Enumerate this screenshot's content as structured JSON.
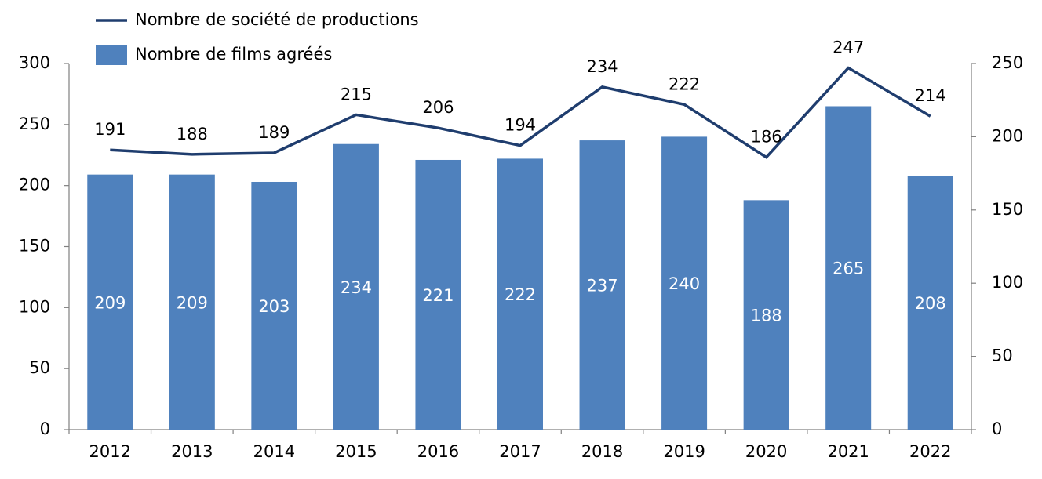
{
  "chart_data": {
    "type": "bar_line",
    "categories": [
      "2012",
      "2013",
      "2014",
      "2015",
      "2016",
      "2017",
      "2018",
      "2019",
      "2020",
      "2021",
      "2022"
    ],
    "series": [
      {
        "name": "Nombre de société de productions",
        "type": "line",
        "axis": "y2",
        "color": "#1f3d6e",
        "values": [
          191,
          188,
          189,
          215,
          206,
          194,
          234,
          222,
          186,
          247,
          214
        ]
      },
      {
        "name": "Nombre de films agréés",
        "type": "bar",
        "axis": "y",
        "color": "#4f81bd",
        "values": [
          209,
          209,
          203,
          234,
          221,
          222,
          237,
          240,
          188,
          265,
          208
        ]
      }
    ],
    "ylim": [
      0,
      300
    ],
    "yticks": [
      0,
      50,
      100,
      150,
      200,
      250,
      300
    ],
    "y2lim": [
      0,
      250
    ],
    "y2ticks": [
      0,
      50,
      100,
      150,
      200,
      250
    ]
  }
}
